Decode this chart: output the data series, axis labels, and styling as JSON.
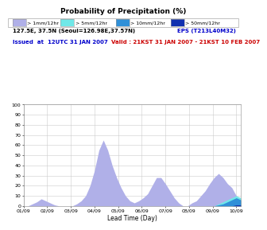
{
  "title": "Probability of Precipitation (%)",
  "xlabel": "Lead Time (Day)",
  "background_color": "#ffffff",
  "plot_bg_color": "#ffffff",
  "info_line1": "127.5E, 37.5N (Seoul=126.98E,37.57N)",
  "info_line1_color": "#000000",
  "info_eps": "EPS (T213L40M32)",
  "info_eps_color": "#0000cc",
  "info_issued": "Issued  at  12UTC 31 JAN 2007",
  "info_issued_color": "#0000cc",
  "info_valid": "Valid : 21KST 31 JAN 2007 - 21KST 10 FEB 2007",
  "info_valid_color": "#cc0000",
  "xlabels": [
    "01/09",
    "02/09",
    "03/09",
    "04/09",
    "05/09",
    "06/09",
    "07/09",
    "08/09",
    "09/09",
    "10/09"
  ],
  "ylim": [
    0,
    100
  ],
  "yticks": [
    0,
    10,
    20,
    30,
    40,
    50,
    60,
    70,
    80,
    90,
    100
  ],
  "grid_color": "#cccccc",
  "legend_entries": [
    "> 1mm/12hr",
    "> 5mm/12hr",
    "> 10mm/12hr",
    "> 50mm/12hr"
  ],
  "legend_colors": [
    "#b0b0e8",
    "#70e8e8",
    "#3090d8",
    "#1030b0"
  ],
  "x_values": [
    0,
    1,
    2,
    3,
    4,
    5,
    6,
    7,
    8,
    9,
    10,
    11,
    12,
    13,
    14,
    15,
    16,
    17,
    18,
    19,
    20,
    21,
    22,
    23,
    24,
    25,
    26,
    27,
    28,
    29,
    30,
    31,
    32,
    33,
    34,
    35,
    36,
    37,
    38,
    39,
    40,
    41,
    42,
    43,
    44,
    45,
    46,
    47,
    48,
    49
  ],
  "y_1mm": [
    0,
    0,
    2,
    4,
    7,
    5,
    3,
    1,
    0,
    0,
    0,
    0,
    2,
    5,
    10,
    20,
    35,
    55,
    65,
    55,
    40,
    28,
    18,
    10,
    5,
    3,
    5,
    8,
    12,
    20,
    28,
    28,
    22,
    15,
    8,
    3,
    0,
    0,
    3,
    5,
    10,
    15,
    22,
    28,
    32,
    28,
    22,
    18,
    10,
    5
  ],
  "y_5mm": [
    0,
    0,
    0,
    0,
    0,
    0,
    0,
    0,
    0,
    0,
    0,
    0,
    0,
    0,
    0,
    0,
    0,
    0,
    0,
    0,
    0,
    0,
    0,
    0,
    0,
    0,
    0,
    0,
    0,
    0,
    0,
    0,
    0,
    0,
    0,
    0,
    0,
    0,
    0,
    0,
    0,
    0,
    0,
    0,
    2,
    4,
    6,
    8,
    10,
    8
  ],
  "y_10mm": [
    0,
    0,
    0,
    0,
    0,
    0,
    0,
    0,
    0,
    0,
    0,
    0,
    0,
    0,
    0,
    0,
    0,
    0,
    0,
    0,
    0,
    0,
    0,
    0,
    0,
    0,
    0,
    0,
    0,
    0,
    0,
    0,
    0,
    0,
    0,
    0,
    0,
    0,
    0,
    0,
    0,
    0,
    0,
    0,
    1,
    2,
    4,
    6,
    8,
    6
  ],
  "y_50mm": [
    0,
    0,
    0,
    0,
    0,
    0,
    0,
    0,
    0,
    0,
    0,
    0,
    0,
    0,
    0,
    0,
    0,
    0,
    0,
    0,
    0,
    0,
    0,
    0,
    0,
    0,
    0,
    0,
    0,
    0,
    0,
    0,
    0,
    0,
    0,
    0,
    0,
    0,
    0,
    0,
    0,
    0,
    0,
    0,
    0,
    0,
    0,
    0,
    1,
    1
  ]
}
